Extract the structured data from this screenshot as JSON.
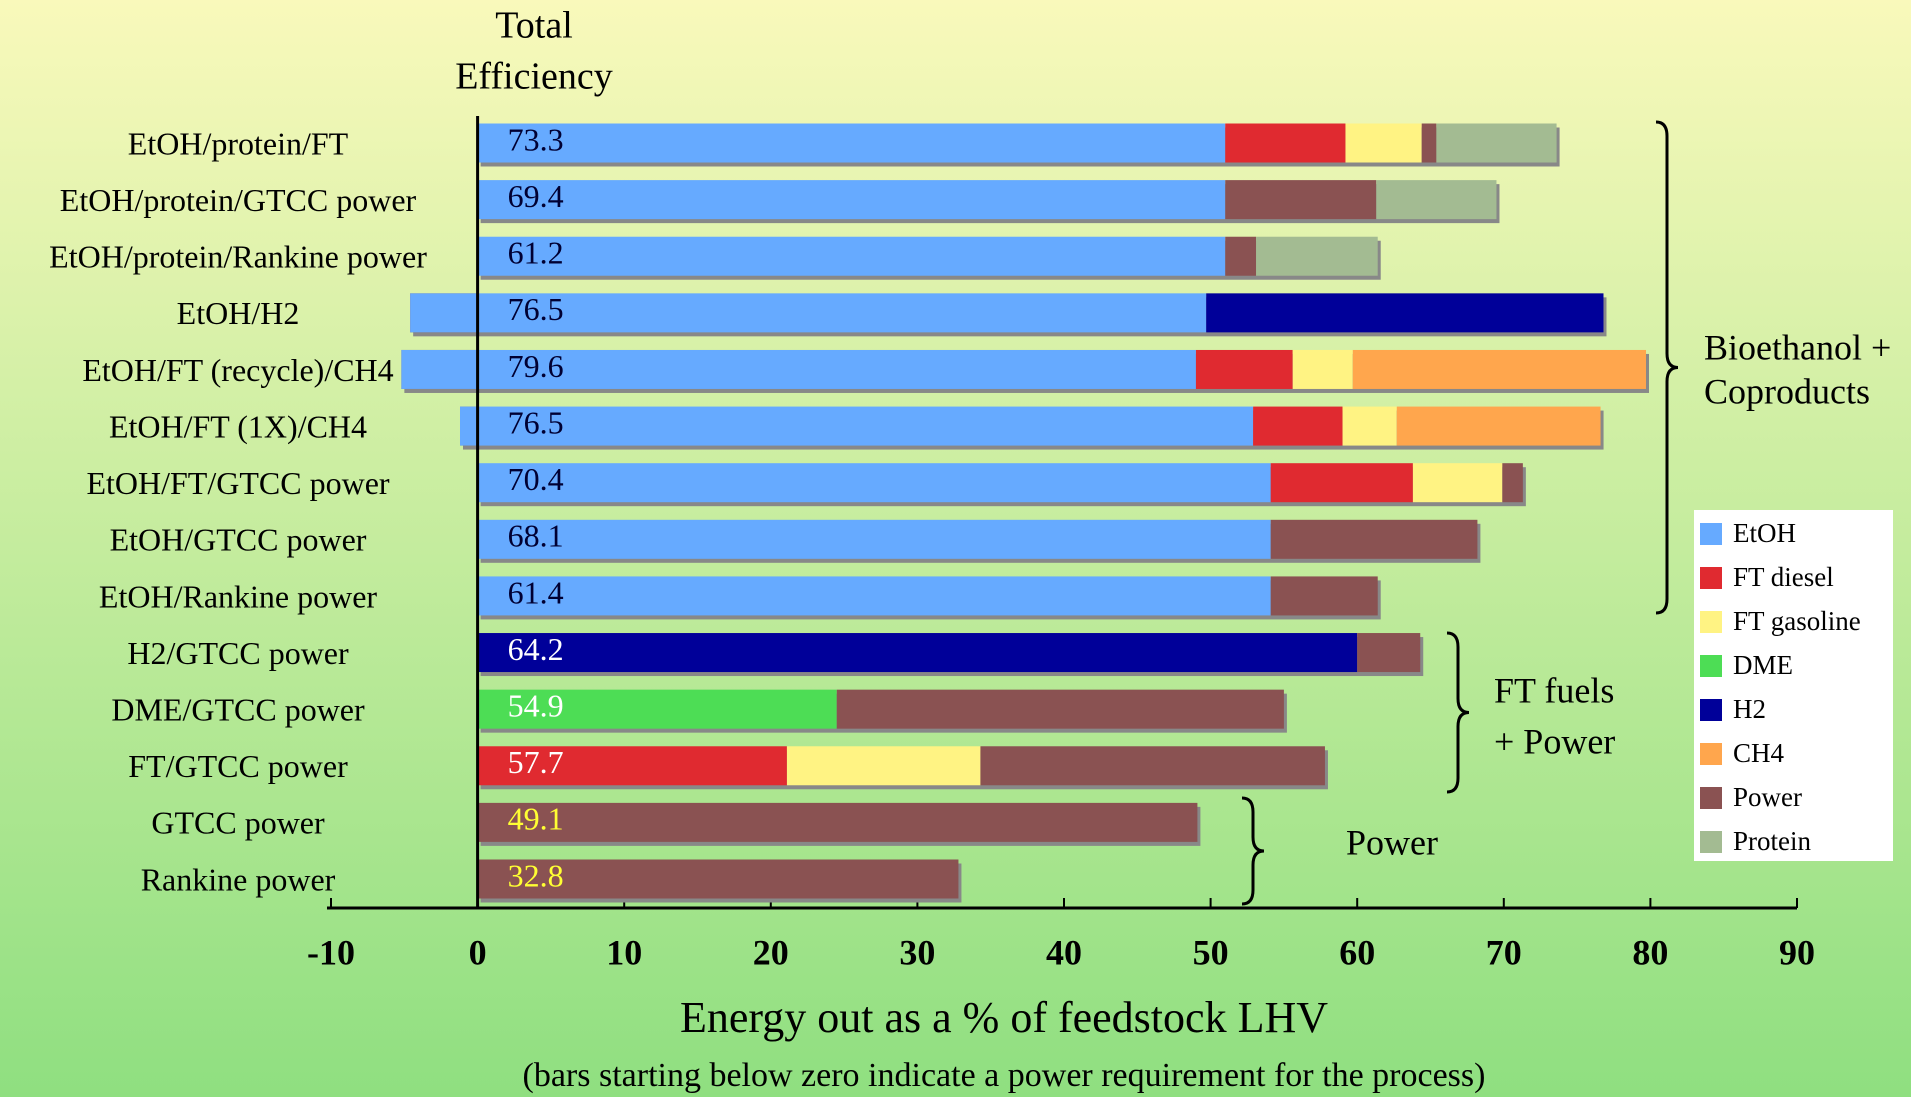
{
  "chart_data": {
    "type": "bar",
    "orientation": "horizontal",
    "stacked": true,
    "title": [
      "Total",
      "Efficiency"
    ],
    "x_label": "Energy out as a % of feedstock LHV",
    "x_sublabel": "(bars starting below zero indicate a power requirement for the process)",
    "categories": [
      "EtOH/protein/FT",
      "EtOH/protein/GTCC power",
      "EtOH/protein/Rankine power",
      "EtOH/H2",
      "EtOH/FT (recycle)/CH4",
      "EtOH/FT (1X)/CH4",
      "EtOH/FT/GTCC power",
      "EtOH/GTCC power",
      "EtOH/Rankine power",
      "H2/GTCC power",
      "DME/GTCC power",
      "FT/GTCC power",
      "GTCC power",
      "Rankine power"
    ],
    "totals": [
      73.3,
      69.4,
      61.2,
      76.5,
      79.6,
      76.5,
      70.4,
      68.1,
      61.4,
      64.2,
      54.9,
      57.7,
      49.1,
      32.8
    ],
    "total_label_colors": [
      "#000033",
      "#000033",
      "#000033",
      "#000033",
      "#000033",
      "#000033",
      "#000033",
      "#000033",
      "#000033",
      "#ffffff",
      "#ffffff",
      "#ffffff",
      "#ffff33",
      "#ffff33"
    ],
    "series": [
      {
        "name": "EtOH",
        "color": "#66aaff",
        "values": [
          51.0,
          51.0,
          51.0,
          54.3,
          54.2,
          54.1,
          54.1,
          54.1,
          54.1,
          null,
          null,
          null,
          null,
          null
        ]
      },
      {
        "name": "FT diesel",
        "color": "#e02a30",
        "values": [
          8.2,
          null,
          null,
          null,
          6.6,
          6.1,
          9.7,
          null,
          null,
          null,
          null,
          21.1,
          null,
          null
        ]
      },
      {
        "name": "FT gasoline",
        "color": "#fff383",
        "values": [
          5.2,
          null,
          null,
          null,
          4.1,
          3.7,
          6.1,
          null,
          null,
          null,
          null,
          13.2,
          null,
          null
        ]
      },
      {
        "name": "DME",
        "color": "#4ddd55",
        "values": [
          null,
          null,
          null,
          null,
          null,
          null,
          null,
          null,
          null,
          null,
          24.5,
          null,
          null,
          null
        ]
      },
      {
        "name": "H2",
        "color": "#000099",
        "values": [
          null,
          null,
          null,
          27.1,
          null,
          null,
          null,
          null,
          null,
          60.0,
          null,
          null,
          null,
          null
        ]
      },
      {
        "name": "CH4",
        "color": "#ffa64d",
        "values": [
          null,
          null,
          null,
          null,
          20.0,
          13.9,
          null,
          null,
          null,
          null,
          null,
          null,
          null,
          null
        ]
      },
      {
        "name": "Power",
        "color": "#8a5252",
        "values": [
          1.0,
          10.3,
          2.1,
          -4.6,
          -5.2,
          -1.2,
          1.4,
          14.1,
          7.3,
          4.3,
          30.5,
          23.5,
          49.1,
          32.8
        ]
      },
      {
        "name": "Protein",
        "color": "#a3bb92",
        "values": [
          8.2,
          8.2,
          8.3,
          null,
          null,
          null,
          null,
          null,
          null,
          null,
          null,
          null,
          null,
          null
        ]
      }
    ],
    "groups": [
      {
        "label": [
          "Bioethanol +",
          "Coproducts"
        ]
      },
      {
        "label": [
          "FT fuels",
          "+ Power"
        ]
      },
      {
        "label": [
          "Power"
        ]
      }
    ],
    "xlim": [
      -10,
      90
    ],
    "xticks": [
      -10,
      0,
      10,
      20,
      30,
      40,
      50,
      60,
      70,
      80,
      90
    ],
    "legend": "right"
  }
}
